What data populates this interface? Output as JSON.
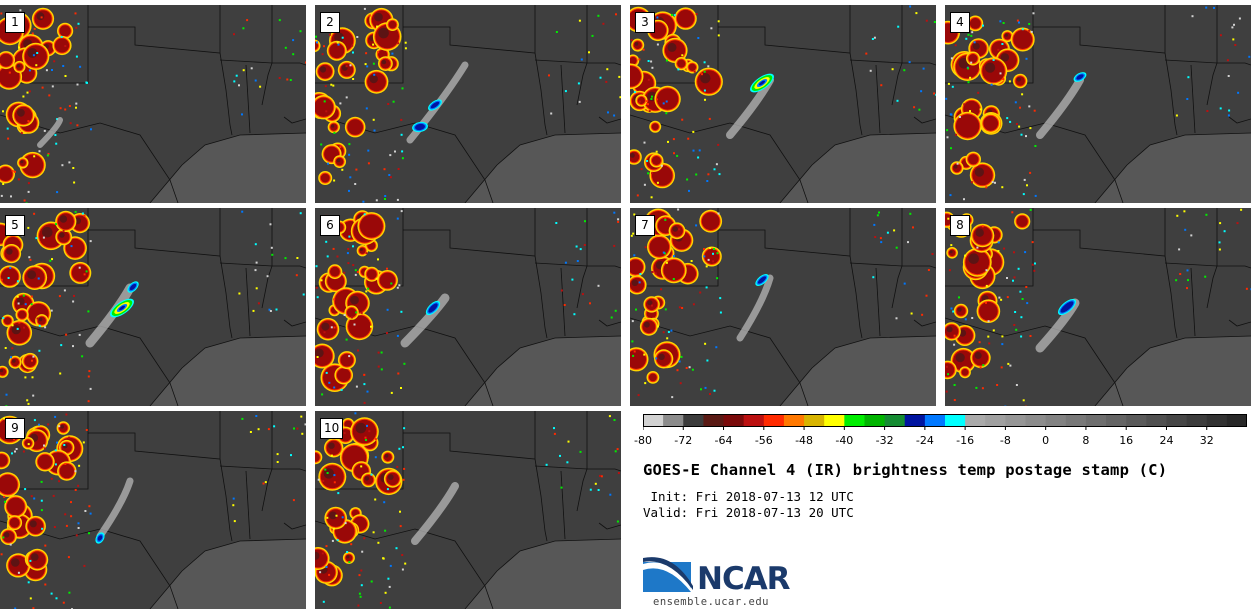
{
  "figure": {
    "title": "GOES-E Channel 4 (IR) brightness temp postage stamp (C)",
    "init": " Init: Fri 2018-07-13 12 UTC",
    "valid": "Valid: Fri 2018-07-13 20 UTC",
    "logo_text": "NCAR",
    "site": "ensemble.ucar.edu"
  },
  "panels": [
    "1",
    "2",
    "3",
    "4",
    "5",
    "6",
    "7",
    "8",
    "9",
    "10"
  ],
  "colorbar": {
    "min": -80,
    "max": 40,
    "step": 4,
    "tick_labels": [
      "-80",
      "-72",
      "-64",
      "-56",
      "-48",
      "-40",
      "-32",
      "-24",
      "-16",
      "-8",
      "0",
      "8",
      "16",
      "24",
      "32"
    ],
    "tick_values": [
      -80,
      -72,
      -64,
      -56,
      -48,
      -40,
      -32,
      -24,
      -16,
      -8,
      0,
      8,
      16,
      24,
      32
    ],
    "colors": [
      "#d2d2d2",
      "#8c8c8c",
      "#3c3c3c",
      "#5a1a14",
      "#7a0a0a",
      "#bb1010",
      "#ff2a00",
      "#ff7800",
      "#d8b400",
      "#ffff00",
      "#00ee00",
      "#00b400",
      "#148c32",
      "#0014a0",
      "#0078ff",
      "#00ffff",
      "#aaaaaa",
      "#a0a0a0",
      "#969696",
      "#8c8c8c",
      "#828282",
      "#787878",
      "#6e6e6e",
      "#646464",
      "#5a5a5a",
      "#505050",
      "#464646",
      "#3c3c3c",
      "#323232",
      "#282828"
    ]
  }
}
